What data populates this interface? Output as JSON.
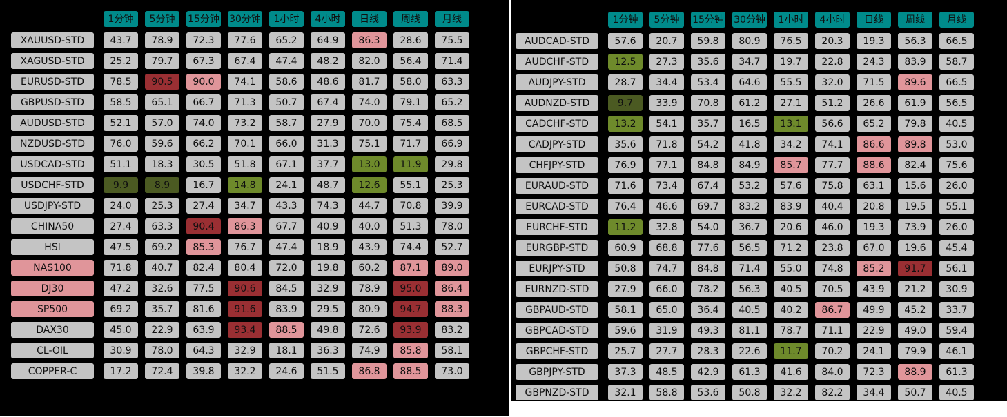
{
  "colors": {
    "header": "#008b8b",
    "neutral": "#c4c4c4",
    "pink": "#e0959a",
    "dark_red": "#9a2f33",
    "green": "#6e8a2b",
    "dark_green": "#4b5a22",
    "background": "#000000"
  },
  "headers": [
    "1分钟",
    "5分钟",
    "15分钟",
    "30分钟",
    "1小时",
    "4小时",
    "日线",
    "周线",
    "月线"
  ],
  "left_panel": {
    "rows": [
      {
        "symbol": "XAUUSD-STD",
        "sym_color": "n",
        "values": [
          "43.7",
          "78.9",
          "72.3",
          "77.6",
          "65.2",
          "64.9",
          "86.3",
          "28.6",
          "75.5"
        ],
        "colors": [
          "n",
          "n",
          "n",
          "n",
          "n",
          "n",
          "pr",
          "n",
          "n"
        ]
      },
      {
        "symbol": "XAGUSD-STD",
        "sym_color": "n",
        "values": [
          "25.2",
          "79.7",
          "67.3",
          "67.4",
          "47.4",
          "48.2",
          "82.0",
          "56.4",
          "71.4"
        ],
        "colors": [
          "n",
          "n",
          "n",
          "n",
          "n",
          "n",
          "n",
          "n",
          "n"
        ]
      },
      {
        "symbol": "EURUSD-STD",
        "sym_color": "n",
        "values": [
          "78.5",
          "90.5",
          "90.0",
          "74.1",
          "58.6",
          "48.6",
          "81.7",
          "58.0",
          "63.3"
        ],
        "colors": [
          "n",
          "dr",
          "pr",
          "n",
          "n",
          "n",
          "n",
          "n",
          "n"
        ]
      },
      {
        "symbol": "GBPUSD-STD",
        "sym_color": "n",
        "values": [
          "58.5",
          "65.1",
          "66.7",
          "71.3",
          "50.7",
          "67.4",
          "74.0",
          "79.1",
          "65.2"
        ],
        "colors": [
          "n",
          "n",
          "n",
          "n",
          "n",
          "n",
          "n",
          "n",
          "n"
        ]
      },
      {
        "symbol": "AUDUSD-STD",
        "sym_color": "n",
        "values": [
          "52.1",
          "57.0",
          "74.0",
          "73.2",
          "58.7",
          "27.9",
          "70.0",
          "75.4",
          "68.5"
        ],
        "colors": [
          "n",
          "n",
          "n",
          "n",
          "n",
          "n",
          "n",
          "n",
          "n"
        ]
      },
      {
        "symbol": "NZDUSD-STD",
        "sym_color": "n",
        "values": [
          "76.0",
          "59.6",
          "66.2",
          "70.1",
          "66.0",
          "31.3",
          "75.1",
          "71.7",
          "66.9"
        ],
        "colors": [
          "n",
          "n",
          "n",
          "n",
          "n",
          "n",
          "n",
          "n",
          "n"
        ]
      },
      {
        "symbol": "USDCAD-STD",
        "sym_color": "n",
        "values": [
          "51.1",
          "18.3",
          "30.5",
          "51.8",
          "67.1",
          "37.7",
          "13.0",
          "11.9",
          "29.8"
        ],
        "colors": [
          "n",
          "n",
          "n",
          "n",
          "n",
          "n",
          "lg",
          "lg",
          "n"
        ]
      },
      {
        "symbol": "USDCHF-STD",
        "sym_color": "n",
        "values": [
          "9.9",
          "8.9",
          "16.7",
          "14.8",
          "24.1",
          "48.7",
          "12.6",
          "55.1",
          "25.3"
        ],
        "colors": [
          "dg",
          "dg",
          "n",
          "lg",
          "n",
          "n",
          "lg",
          "n",
          "n"
        ]
      },
      {
        "symbol": "USDJPY-STD",
        "sym_color": "n",
        "values": [
          "24.0",
          "25.3",
          "27.4",
          "34.7",
          "43.3",
          "74.3",
          "44.7",
          "70.8",
          "39.9"
        ],
        "colors": [
          "n",
          "n",
          "n",
          "n",
          "n",
          "n",
          "n",
          "n",
          "n"
        ]
      },
      {
        "symbol": "CHINA50",
        "sym_color": "n",
        "values": [
          "27.4",
          "63.3",
          "90.4",
          "86.3",
          "67.7",
          "40.9",
          "40.0",
          "51.3",
          "78.0"
        ],
        "colors": [
          "n",
          "n",
          "dr",
          "pr",
          "n",
          "n",
          "n",
          "n",
          "n"
        ]
      },
      {
        "symbol": "HSI",
        "sym_color": "n",
        "values": [
          "47.5",
          "69.2",
          "85.3",
          "76.7",
          "47.4",
          "18.9",
          "43.9",
          "74.4",
          "52.7"
        ],
        "colors": [
          "n",
          "n",
          "pr",
          "n",
          "n",
          "n",
          "n",
          "n",
          "n"
        ]
      },
      {
        "symbol": "NAS100",
        "sym_color": "pr",
        "values": [
          "71.8",
          "40.7",
          "82.4",
          "80.4",
          "72.0",
          "19.8",
          "60.2",
          "87.1",
          "89.0"
        ],
        "colors": [
          "n",
          "n",
          "n",
          "n",
          "n",
          "n",
          "n",
          "pr",
          "pr"
        ]
      },
      {
        "symbol": "DJ30",
        "sym_color": "pr",
        "values": [
          "47.2",
          "32.6",
          "77.5",
          "90.6",
          "84.5",
          "32.9",
          "78.9",
          "95.0",
          "86.4"
        ],
        "colors": [
          "n",
          "n",
          "n",
          "dr",
          "n",
          "n",
          "n",
          "dr",
          "pr"
        ]
      },
      {
        "symbol": "SP500",
        "sym_color": "pr",
        "values": [
          "69.2",
          "35.7",
          "81.6",
          "91.6",
          "83.9",
          "29.5",
          "80.9",
          "94.7",
          "88.3"
        ],
        "colors": [
          "n",
          "n",
          "n",
          "dr",
          "n",
          "n",
          "n",
          "dr",
          "pr"
        ]
      },
      {
        "symbol": "DAX30",
        "sym_color": "n",
        "values": [
          "45.0",
          "22.9",
          "63.9",
          "93.4",
          "88.5",
          "49.8",
          "72.6",
          "93.9",
          "83.2"
        ],
        "colors": [
          "n",
          "n",
          "n",
          "dr",
          "pr",
          "n",
          "n",
          "dr",
          "n"
        ]
      },
      {
        "symbol": "CL-OIL",
        "sym_color": "n",
        "values": [
          "30.9",
          "78.0",
          "64.3",
          "32.9",
          "18.1",
          "36.3",
          "74.9",
          "85.8",
          "58.1"
        ],
        "colors": [
          "n",
          "n",
          "n",
          "n",
          "n",
          "n",
          "n",
          "pr",
          "n"
        ]
      },
      {
        "symbol": "COPPER-C",
        "sym_color": "n",
        "values": [
          "17.2",
          "72.4",
          "39.8",
          "32.2",
          "24.6",
          "51.5",
          "86.8",
          "88.5",
          "73.0"
        ],
        "colors": [
          "n",
          "n",
          "n",
          "n",
          "n",
          "n",
          "pr",
          "pr",
          "n"
        ]
      }
    ]
  },
  "right_panel": {
    "rows": [
      {
        "symbol": "AUDCAD-STD",
        "sym_color": "n",
        "values": [
          "57.6",
          "20.7",
          "59.8",
          "80.9",
          "76.5",
          "20.3",
          "19.3",
          "56.3",
          "66.5"
        ],
        "colors": [
          "n",
          "n",
          "n",
          "n",
          "n",
          "n",
          "n",
          "n",
          "n"
        ]
      },
      {
        "symbol": "AUDCHF-STD",
        "sym_color": "n",
        "values": [
          "12.5",
          "27.3",
          "35.6",
          "34.7",
          "19.7",
          "22.8",
          "24.3",
          "83.9",
          "58.7"
        ],
        "colors": [
          "lg",
          "n",
          "n",
          "n",
          "n",
          "n",
          "n",
          "n",
          "n"
        ]
      },
      {
        "symbol": "AUDJPY-STD",
        "sym_color": "n",
        "values": [
          "28.7",
          "34.4",
          "53.4",
          "64.6",
          "55.5",
          "32.0",
          "71.5",
          "89.6",
          "66.5"
        ],
        "colors": [
          "n",
          "n",
          "n",
          "n",
          "n",
          "n",
          "n",
          "pr",
          "n"
        ]
      },
      {
        "symbol": "AUDNZD-STD",
        "sym_color": "n",
        "values": [
          "9.7",
          "33.9",
          "70.8",
          "61.2",
          "27.1",
          "51.2",
          "26.6",
          "61.9",
          "56.5"
        ],
        "colors": [
          "dg",
          "n",
          "n",
          "n",
          "n",
          "n",
          "n",
          "n",
          "n"
        ]
      },
      {
        "symbol": "CADCHF-STD",
        "sym_color": "n",
        "values": [
          "13.2",
          "54.1",
          "35.7",
          "16.5",
          "13.1",
          "56.6",
          "65.2",
          "79.8",
          "40.5"
        ],
        "colors": [
          "lg",
          "n",
          "n",
          "n",
          "lg",
          "n",
          "n",
          "n",
          "n"
        ]
      },
      {
        "symbol": "CADJPY-STD",
        "sym_color": "n",
        "values": [
          "35.6",
          "71.8",
          "54.2",
          "41.8",
          "34.2",
          "74.1",
          "86.6",
          "89.8",
          "53.0"
        ],
        "colors": [
          "n",
          "n",
          "n",
          "n",
          "n",
          "n",
          "pr",
          "pr",
          "n"
        ]
      },
      {
        "symbol": "CHFJPY-STD",
        "sym_color": "n",
        "values": [
          "76.9",
          "77.1",
          "84.8",
          "84.9",
          "85.7",
          "77.7",
          "88.6",
          "82.4",
          "75.6"
        ],
        "colors": [
          "n",
          "n",
          "n",
          "n",
          "pr",
          "n",
          "pr",
          "n",
          "n"
        ]
      },
      {
        "symbol": "EURAUD-STD",
        "sym_color": "n",
        "values": [
          "71.6",
          "73.4",
          "67.4",
          "53.2",
          "57.6",
          "75.8",
          "63.1",
          "15.6",
          "26.0"
        ],
        "colors": [
          "n",
          "n",
          "n",
          "n",
          "n",
          "n",
          "n",
          "n",
          "n"
        ]
      },
      {
        "symbol": "EURCAD-STD",
        "sym_color": "n",
        "values": [
          "76.4",
          "46.6",
          "69.7",
          "83.2",
          "83.9",
          "40.4",
          "20.8",
          "19.5",
          "55.1"
        ],
        "colors": [
          "n",
          "n",
          "n",
          "n",
          "n",
          "n",
          "n",
          "n",
          "n"
        ]
      },
      {
        "symbol": "EURCHF-STD",
        "sym_color": "n",
        "values": [
          "11.2",
          "32.8",
          "54.0",
          "36.7",
          "20.6",
          "46.0",
          "19.3",
          "73.9",
          "26.0"
        ],
        "colors": [
          "lg",
          "n",
          "n",
          "n",
          "n",
          "n",
          "n",
          "n",
          "n"
        ]
      },
      {
        "symbol": "EURGBP-STD",
        "sym_color": "n",
        "values": [
          "60.9",
          "68.8",
          "77.6",
          "56.5",
          "71.2",
          "23.8",
          "67.0",
          "19.6",
          "45.4"
        ],
        "colors": [
          "n",
          "n",
          "n",
          "n",
          "n",
          "n",
          "n",
          "n",
          "n"
        ]
      },
      {
        "symbol": "EURJPY-STD",
        "sym_color": "n",
        "values": [
          "50.8",
          "74.7",
          "84.8",
          "71.4",
          "55.0",
          "74.8",
          "85.2",
          "91.7",
          "56.1"
        ],
        "colors": [
          "n",
          "n",
          "n",
          "n",
          "n",
          "n",
          "pr",
          "dr",
          "n"
        ]
      },
      {
        "symbol": "EURNZD-STD",
        "sym_color": "n",
        "values": [
          "27.9",
          "66.0",
          "78.2",
          "56.3",
          "40.5",
          "70.5",
          "43.9",
          "21.2",
          "30.9"
        ],
        "colors": [
          "n",
          "n",
          "n",
          "n",
          "n",
          "n",
          "n",
          "n",
          "n"
        ]
      },
      {
        "symbol": "GBPAUD-STD",
        "sym_color": "n",
        "values": [
          "58.1",
          "65.0",
          "36.4",
          "40.5",
          "40.2",
          "86.7",
          "49.9",
          "45.2",
          "33.7"
        ],
        "colors": [
          "n",
          "n",
          "n",
          "n",
          "n",
          "pr",
          "n",
          "n",
          "n"
        ]
      },
      {
        "symbol": "GBPCAD-STD",
        "sym_color": "n",
        "values": [
          "59.6",
          "31.9",
          "49.3",
          "81.1",
          "78.7",
          "71.1",
          "22.9",
          "49.0",
          "59.4"
        ],
        "colors": [
          "n",
          "n",
          "n",
          "n",
          "n",
          "n",
          "n",
          "n",
          "n"
        ]
      },
      {
        "symbol": "GBPCHF-STD",
        "sym_color": "n",
        "values": [
          "25.7",
          "27.7",
          "28.3",
          "22.6",
          "11.7",
          "70.2",
          "24.1",
          "79.9",
          "46.1"
        ],
        "colors": [
          "n",
          "n",
          "n",
          "n",
          "lg",
          "n",
          "n",
          "n",
          "n"
        ]
      },
      {
        "symbol": "GBPJPY-STD",
        "sym_color": "n",
        "values": [
          "37.3",
          "48.5",
          "42.9",
          "61.3",
          "41.6",
          "84.0",
          "72.3",
          "88.9",
          "61.3"
        ],
        "colors": [
          "n",
          "n",
          "n",
          "n",
          "n",
          "n",
          "n",
          "pr",
          "n"
        ]
      },
      {
        "symbol": "GBPNZD-STD",
        "sym_color": "n",
        "values": [
          "32.1",
          "58.8",
          "53.6",
          "50.8",
          "32.2",
          "82.2",
          "34.4",
          "50.7",
          "40.5"
        ],
        "colors": [
          "n",
          "n",
          "n",
          "n",
          "n",
          "n",
          "n",
          "n",
          "n"
        ]
      }
    ]
  }
}
